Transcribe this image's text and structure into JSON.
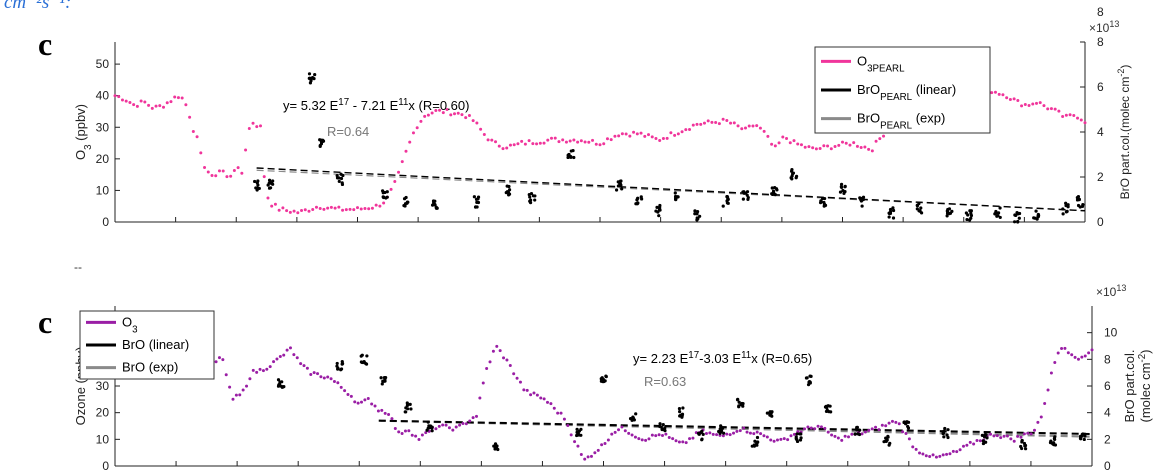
{
  "header_fragment": "cm⁻²s⁻¹:",
  "stray_mark": "--",
  "colors": {
    "ozone_a": "#f0359b",
    "ozone_b": "#9a1ea5",
    "bro": "#000000",
    "fit_linear": "#000000",
    "fit_exp": "#8a8a8a"
  },
  "chart_data": [
    {
      "panel_label": "c",
      "type": "scatter",
      "ylabel_left_main": "O",
      "ylabel_left_sub": "3",
      "ylabel_left_tail": " (ppbv)",
      "ylabel_right": "BrO part.col.(molec cm",
      "ylabel_right_sup": "-2",
      "ylabel_right_tail": ")",
      "right_multiplier": "×10",
      "right_multiplier_exp": "13",
      "yticks_left": [
        "0",
        "10",
        "20",
        "30",
        "40",
        "50"
      ],
      "yticks_right": [
        "0",
        "2",
        "4",
        "6",
        "8"
      ],
      "ylim_left": [
        0,
        57
      ],
      "ylim_right": [
        0,
        8
      ],
      "top_tick_partial": "8",
      "legend": {
        "placement": "top-right",
        "entries": [
          {
            "main": "O",
            "sub": "3PEARL",
            "tail": ""
          },
          {
            "main": "BrO",
            "sub": "PEARL",
            "tail": " (linear)"
          },
          {
            "main": "BrO",
            "sub": "PEARL",
            "tail": " (exp)"
          }
        ]
      },
      "equation": {
        "part1": "y= 5.32 E",
        "sup1": "17",
        "part2": " - 7.21 E",
        "sup2": "11",
        "part3": "x  (R=0.60)"
      },
      "r_exp": "R=0.64",
      "series": [
        {
          "name": "O3PEARL",
          "x": [
            0,
            0.01,
            0.02,
            0.03,
            0.04,
            0.05,
            0.06,
            0.065,
            0.07,
            0.075,
            0.08,
            0.085,
            0.09,
            0.1,
            0.11,
            0.115,
            0.12,
            0.125,
            0.13,
            0.135,
            0.14,
            0.15,
            0.155,
            0.16,
            0.17,
            0.19,
            0.21,
            0.23,
            0.25,
            0.27,
            0.28,
            0.29,
            0.3,
            0.31,
            0.32,
            0.33,
            0.34,
            0.36,
            0.37,
            0.38,
            0.39,
            0.4,
            0.41,
            0.42,
            0.45,
            0.48,
            0.5,
            0.52,
            0.54,
            0.56,
            0.6,
            0.63,
            0.65,
            0.66,
            0.67,
            0.68,
            0.69,
            0.7,
            0.71,
            0.72,
            0.74,
            0.76,
            0.78,
            0.79,
            0.8,
            0.81,
            0.83,
            0.85,
            0.86,
            0.87,
            0.88,
            0.89,
            0.9,
            0.91,
            0.92,
            0.93,
            0.94,
            0.95,
            0.97,
            0.98,
            0.99,
            1.0
          ],
          "y": [
            40,
            39,
            37,
            38,
            36,
            37,
            39,
            40,
            39,
            36,
            30,
            26,
            19,
            14,
            17,
            14,
            15,
            18,
            14,
            24,
            32,
            30,
            10,
            6,
            4,
            3,
            5,
            4,
            4,
            5,
            7,
            13,
            22,
            30,
            34,
            35,
            35,
            34,
            32,
            28,
            25,
            24,
            24,
            25,
            26,
            26,
            25,
            28,
            28,
            26,
            31,
            32,
            29,
            31,
            28,
            23,
            27,
            25,
            24,
            23,
            24,
            25,
            23,
            27,
            31,
            34,
            33,
            34,
            36,
            39,
            41,
            42,
            42,
            41,
            40,
            38,
            37,
            38,
            35,
            33,
            34,
            32
          ]
        },
        {
          "name": "BrO",
          "x": [
            0.146,
            0.16,
            0.203,
            0.214,
            0.232,
            0.278,
            0.3,
            0.33,
            0.373,
            0.405,
            0.43,
            0.47,
            0.52,
            0.54,
            0.56,
            0.58,
            0.6,
            0.63,
            0.65,
            0.68,
            0.7,
            0.73,
            0.75,
            0.77,
            0.8,
            0.83,
            0.86,
            0.88,
            0.91,
            0.93,
            0.95,
            0.98,
            0.995
          ],
          "y": [
            1.6,
            1.7,
            6.4,
            3.6,
            1.9,
            1.3,
            0.9,
            0.8,
            0.9,
            1.4,
            1.1,
            3.1,
            1.6,
            0.9,
            0.5,
            1.2,
            0.3,
            0.9,
            1.2,
            1.4,
            2.1,
            0.9,
            1.5,
            0.9,
            0.4,
            0.6,
            0.5,
            0.3,
            0.4,
            0.2,
            0.3,
            0.6,
            0.9
          ]
        }
      ],
      "fits": {
        "linear": {
          "x": [
            0.146,
            1.0
          ],
          "y": [
            2.4,
            0.5
          ]
        },
        "exp": {
          "x": [
            0.146,
            1.0
          ],
          "y": [
            2.3,
            0.5
          ]
        }
      }
    },
    {
      "panel_label": "c",
      "type": "scatter",
      "ylabel_left_main": "Ozone (ppbv)",
      "ylabel_right_line1": "BrO part.col.",
      "ylabel_right_line2": "(molec cm",
      "ylabel_right_sup": "-2",
      "ylabel_right_tail": ")",
      "right_multiplier": "×10",
      "right_multiplier_exp": "13",
      "yticks_left": [
        "0",
        "10",
        "20",
        "30",
        "40",
        "50"
      ],
      "yticks_right": [
        "0",
        "2",
        "4",
        "6",
        "8",
        "10"
      ],
      "ylim_left": [
        0,
        60
      ],
      "ylim_right": [
        0,
        12
      ],
      "legend": {
        "placement": "top-left",
        "entries": [
          {
            "main": "O",
            "sub": "3",
            "tail": ""
          },
          {
            "main": "BrO (linear)",
            "sub": "",
            "tail": ""
          },
          {
            "main": "BrO (exp)",
            "sub": "",
            "tail": ""
          }
        ]
      },
      "equation": {
        "part1": "y= 2.23 E",
        "sup1": "17",
        "part2": "-3.03 E",
        "sup2": "11",
        "part3": "x (R=0.65)"
      },
      "r_exp": "R=0.63",
      "series": [
        {
          "name": "O3",
          "x": [
            0.1,
            0.11,
            0.115,
            0.12,
            0.13,
            0.14,
            0.15,
            0.16,
            0.17,
            0.18,
            0.19,
            0.2,
            0.22,
            0.24,
            0.25,
            0.26,
            0.27,
            0.28,
            0.29,
            0.3,
            0.31,
            0.33,
            0.35,
            0.37,
            0.38,
            0.39,
            0.4,
            0.42,
            0.44,
            0.46,
            0.48,
            0.5,
            0.51,
            0.52,
            0.53,
            0.54,
            0.56,
            0.58,
            0.6,
            0.62,
            0.64,
            0.66,
            0.68,
            0.7,
            0.72,
            0.74,
            0.76,
            0.78,
            0.8,
            0.82,
            0.84,
            0.86,
            0.88,
            0.9,
            0.92,
            0.94,
            0.95,
            0.96,
            0.97,
            0.98,
            0.99,
            1.0
          ],
          "y": [
            38,
            41,
            32,
            25,
            27,
            35,
            36,
            38,
            41,
            44,
            38,
            35,
            33,
            27,
            23,
            25,
            21,
            20,
            12,
            14,
            10,
            15,
            14,
            19,
            36,
            45,
            40,
            28,
            25,
            18,
            2,
            8,
            13,
            14,
            12,
            10,
            12,
            8,
            13,
            11,
            14,
            12,
            9,
            13,
            15,
            10,
            12,
            14,
            17,
            6,
            3,
            5,
            9,
            12,
            10,
            13,
            20,
            38,
            45,
            42,
            40,
            44
          ]
        },
        {
          "name": "BrO",
          "x": [
            0.17,
            0.23,
            0.255,
            0.275,
            0.3,
            0.322,
            0.39,
            0.475,
            0.5,
            0.53,
            0.56,
            0.58,
            0.6,
            0.62,
            0.64,
            0.655,
            0.67,
            0.7,
            0.71,
            0.73,
            0.76,
            0.79,
            0.81,
            0.85,
            0.89,
            0.93,
            0.96,
            0.99
          ],
          "y": [
            6.2,
            7.5,
            8.0,
            6.5,
            4.4,
            3.0,
            1.5,
            2.4,
            6.6,
            3.6,
            2.9,
            4.0,
            2.3,
            2.8,
            4.8,
            1.8,
            3.8,
            2.2,
            6.4,
            4.4,
            2.7,
            1.9,
            3.0,
            2.5,
            2.0,
            1.6,
            1.9,
            2.1
          ]
        }
      ],
      "fits": {
        "linear": {
          "x": [
            0.27,
            1.0
          ],
          "y": [
            3.4,
            2.4
          ]
        },
        "exp": {
          "x": [
            0.27,
            1.0
          ],
          "y": [
            3.4,
            2.2
          ]
        }
      }
    }
  ]
}
